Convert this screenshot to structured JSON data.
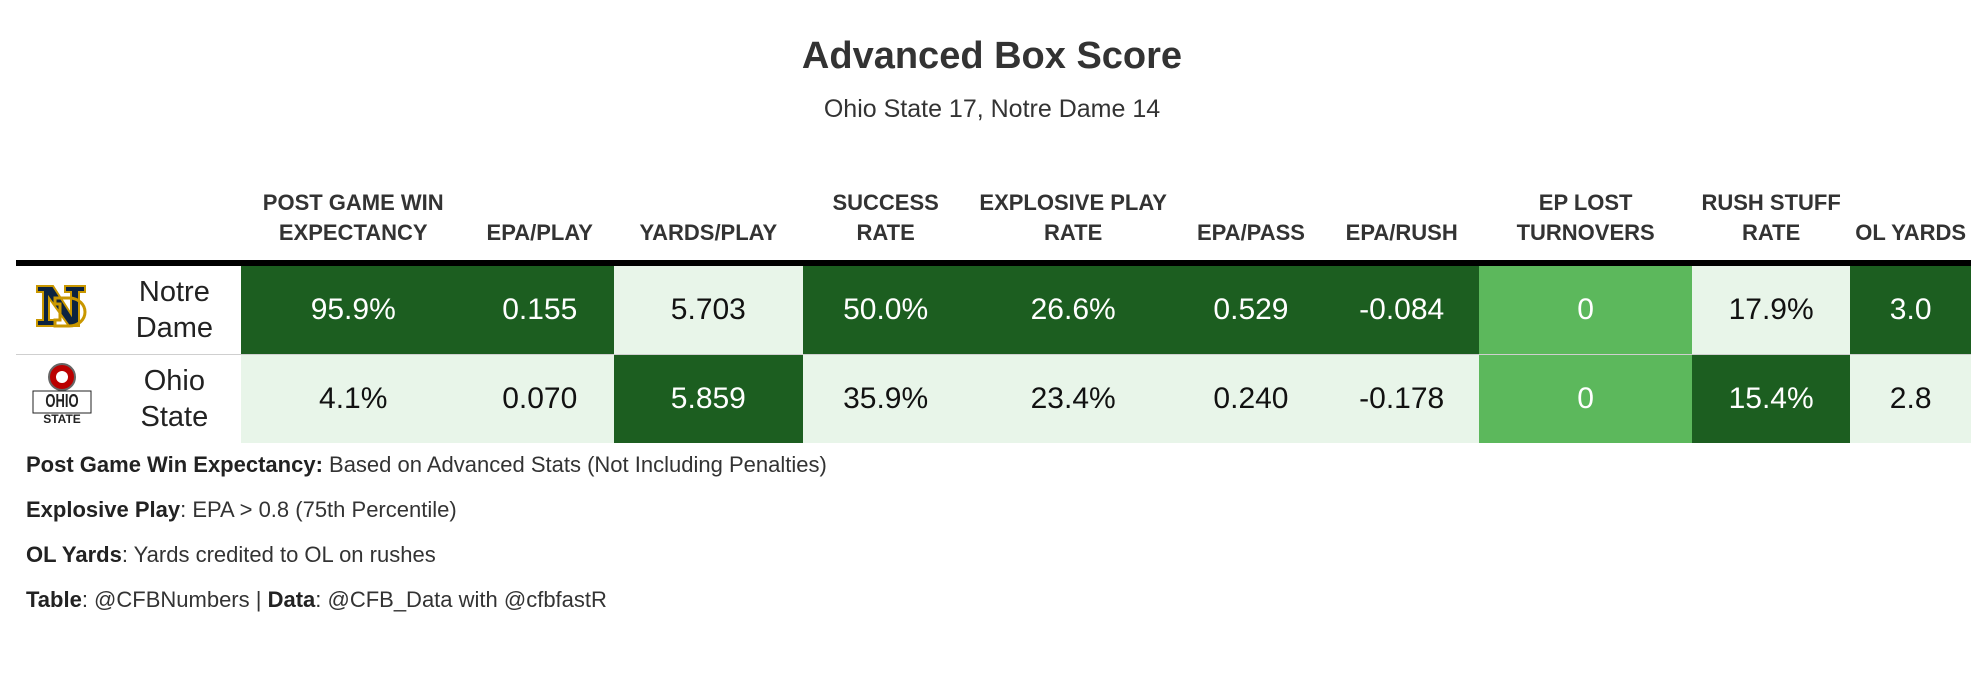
{
  "chart_data": {
    "type": "table",
    "title": "Advanced Box Score",
    "subtitle": "Ohio State 17, Notre Dame 14",
    "columns": [
      "POST GAME WIN EXPECTANCY",
      "EPA/PLAY",
      "YARDS/PLAY",
      "SUCCESS RATE",
      "EXPLOSIVE PLAY RATE",
      "EPA/PASS",
      "EPA/RUSH",
      "EP LOST TURNOVERS",
      "RUSH STUFF RATE",
      "OL YARDS"
    ],
    "rows": [
      {
        "team": "Notre Dame",
        "logo": "notre-dame-logo",
        "values": [
          "95.9%",
          "0.155",
          "5.703",
          "50.0%",
          "26.6%",
          "0.529",
          "-0.084",
          "0",
          "17.9%",
          "3.0"
        ],
        "shades": [
          "dark",
          "dark",
          "light",
          "dark",
          "dark",
          "dark",
          "dark",
          "mid",
          "light",
          "dark"
        ]
      },
      {
        "team": "Ohio State",
        "logo": "ohio-state-logo",
        "values": [
          "4.1%",
          "0.070",
          "5.859",
          "35.9%",
          "23.4%",
          "0.240",
          "-0.178",
          "0",
          "15.4%",
          "2.8"
        ],
        "shades": [
          "light",
          "light",
          "dark",
          "light",
          "light",
          "light",
          "light",
          "mid",
          "dark",
          "light"
        ]
      }
    ],
    "colors": {
      "dark": "#1c5e20",
      "mid": "#5cb85c",
      "light": "#e8f5e9"
    }
  },
  "notes": [
    {
      "label": "Post Game Win Expectancy:",
      "text": " Based on Advanced Stats (Not Including Penalties)"
    },
    {
      "label": "Explosive Play",
      "text": ": EPA > 0.8 (75th Percentile)"
    },
    {
      "label": "OL Yards",
      "text": ": Yards credited to OL on rushes"
    }
  ],
  "credits": {
    "table_label": "Table",
    "table_text": ": @CFBNumbers | ",
    "data_label": "Data",
    "data_text": ": @CFB_Data with @cfbfastR"
  }
}
